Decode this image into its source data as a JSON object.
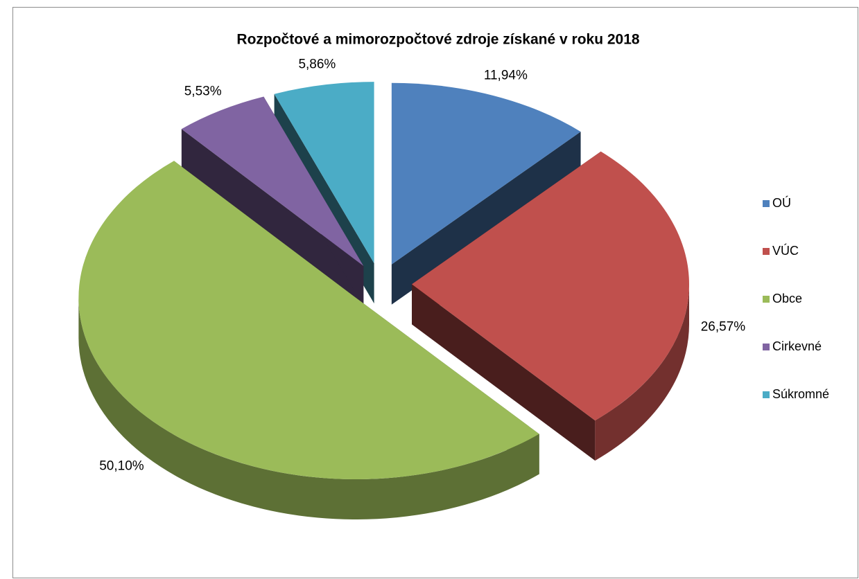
{
  "chart_data": {
    "type": "pie",
    "title": "Rozpočtové a mimorozpočtové zdroje získané v roku 2018",
    "categories": [
      "OÚ",
      "VÚC",
      "Obce",
      "Cirkevné",
      "Súkromné"
    ],
    "values": [
      11.94,
      26.57,
      50.1,
      5.53,
      5.86
    ],
    "value_labels": [
      "11,94%",
      "26,57%",
      "50,10%",
      "5,53%",
      "5,86%"
    ],
    "colors": [
      "#4f81bd",
      "#c0504d",
      "#9bbb59",
      "#8064a2",
      "#4bacc6"
    ],
    "legend": "right"
  }
}
